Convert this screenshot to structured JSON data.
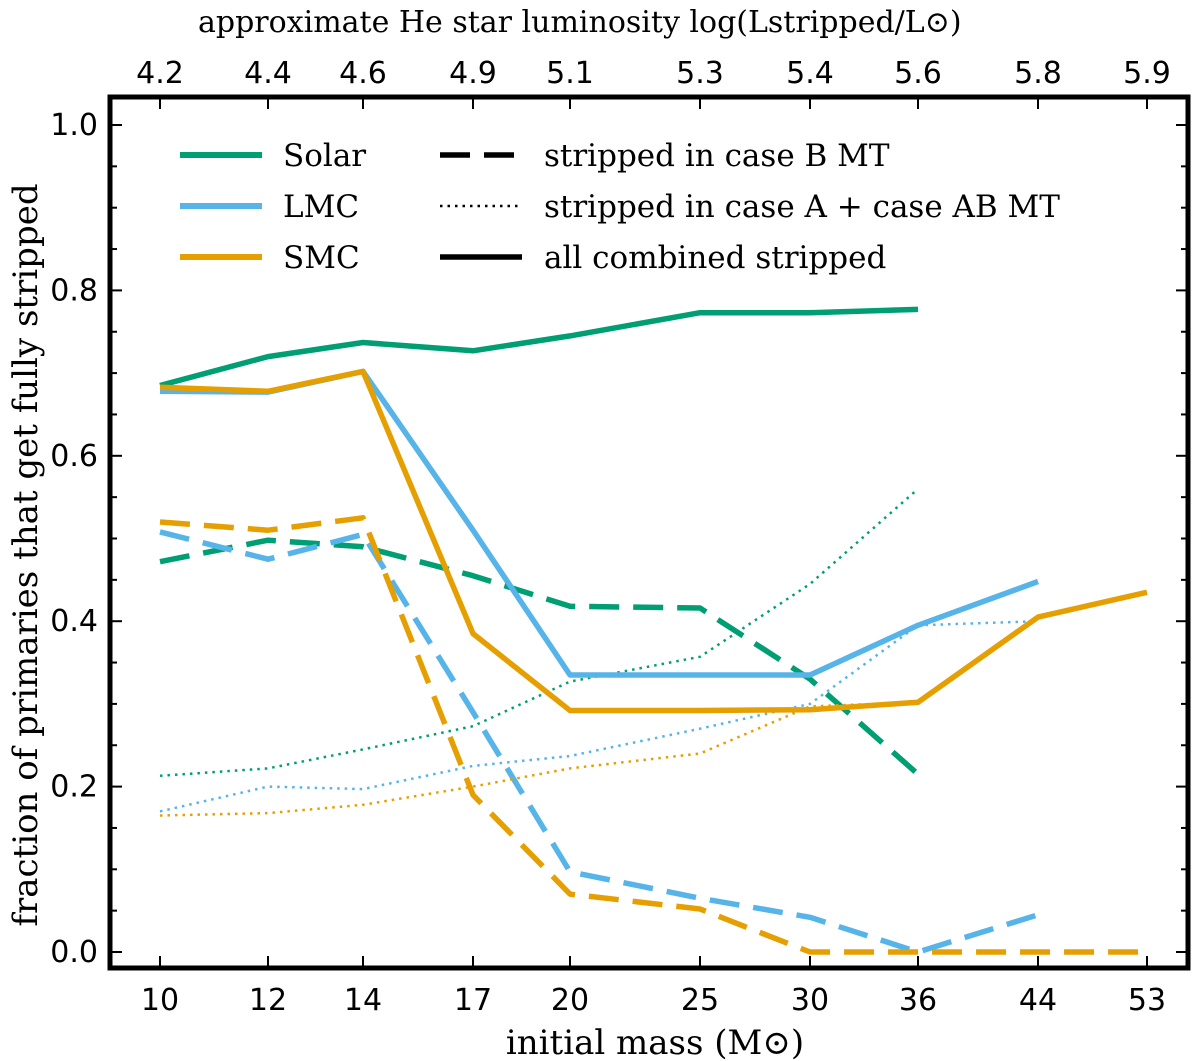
{
  "chart_data": {
    "type": "line",
    "title": "",
    "xlabel": "initial mass (M⊙)",
    "ylabel": "fraction of primaries that get fully stripped",
    "top_axis_label": "approximate He star luminosity log(Lstripped/L⊙)",
    "ylim": [
      -0.02,
      1.02
    ],
    "x_categories": [
      "10",
      "12",
      "14",
      "17",
      "20",
      "25",
      "30",
      "36",
      "44",
      "53"
    ],
    "top_tick_labels": [
      "4.2",
      "4.4",
      "4.6",
      "4.9",
      "5.1",
      "5.3",
      "5.4",
      "5.6",
      "5.8",
      "5.9"
    ],
    "y_ticks": [
      "0.0",
      "0.2",
      "0.4",
      "0.6",
      "0.8",
      "1.0"
    ],
    "grid": false,
    "legend_position": "top-left",
    "colors": {
      "Solar": "#009e73",
      "LMC": "#56b4e9",
      "SMC": "#e69f00"
    },
    "legend": {
      "metallicities": [
        "Solar",
        "LMC",
        "SMC"
      ],
      "styles": [
        "stripped in case B MT",
        "stripped in case A + case AB MT",
        "all combined stripped"
      ]
    },
    "series": [
      {
        "name": "Solar",
        "style": "all combined stripped",
        "x": [
          10,
          12,
          14,
          17,
          20,
          25,
          30,
          36
        ],
        "values": [
          0.685,
          0.72,
          0.737,
          0.727,
          0.745,
          0.773,
          0.773,
          0.777
        ]
      },
      {
        "name": "Solar",
        "style": "stripped in case B MT",
        "x": [
          10,
          12,
          14,
          17,
          20,
          25,
          30,
          36
        ],
        "values": [
          0.472,
          0.498,
          0.49,
          0.455,
          0.418,
          0.416,
          0.33,
          0.215
        ]
      },
      {
        "name": "Solar",
        "style": "stripped in case A + case AB MT",
        "x": [
          10,
          12,
          14,
          17,
          20,
          25,
          30,
          36
        ],
        "values": [
          0.213,
          0.222,
          0.245,
          0.273,
          0.327,
          0.357,
          0.445,
          0.56
        ]
      },
      {
        "name": "LMC",
        "style": "all combined stripped",
        "x": [
          10,
          12,
          14,
          17,
          20,
          25,
          30,
          36,
          44
        ],
        "values": [
          0.678,
          0.677,
          0.702,
          0.51,
          0.335,
          0.335,
          0.335,
          0.395,
          0.448
        ]
      },
      {
        "name": "LMC",
        "style": "stripped in case B MT",
        "x": [
          10,
          12,
          14,
          17,
          20,
          25,
          30,
          36,
          44
        ],
        "values": [
          0.508,
          0.475,
          0.505,
          0.29,
          0.097,
          0.065,
          0.042,
          0.0,
          0.045
        ]
      },
      {
        "name": "LMC",
        "style": "stripped in case A + case AB MT",
        "x": [
          10,
          12,
          14,
          17,
          20,
          25,
          30,
          36,
          44
        ],
        "values": [
          0.17,
          0.2,
          0.197,
          0.225,
          0.237,
          0.27,
          0.3,
          0.395,
          0.4
        ]
      },
      {
        "name": "SMC",
        "style": "all combined stripped",
        "x": [
          10,
          12,
          14,
          17,
          20,
          25,
          30,
          36,
          44,
          53
        ],
        "values": [
          0.683,
          0.678,
          0.702,
          0.385,
          0.292,
          0.292,
          0.293,
          0.302,
          0.405,
          0.435
        ]
      },
      {
        "name": "SMC",
        "style": "stripped in case B MT",
        "x": [
          10,
          12,
          14,
          17,
          20,
          25,
          30,
          36,
          44,
          53
        ],
        "values": [
          0.52,
          0.51,
          0.525,
          0.19,
          0.07,
          0.052,
          0.0,
          0.0,
          0.0,
          0.0
        ]
      },
      {
        "name": "SMC",
        "style": "stripped in case A + case AB MT",
        "x": [
          10,
          12,
          14,
          17,
          20,
          25,
          30,
          36
        ],
        "values": [
          0.165,
          0.168,
          0.178,
          0.2,
          0.222,
          0.24,
          0.297,
          0.302
        ]
      }
    ]
  }
}
